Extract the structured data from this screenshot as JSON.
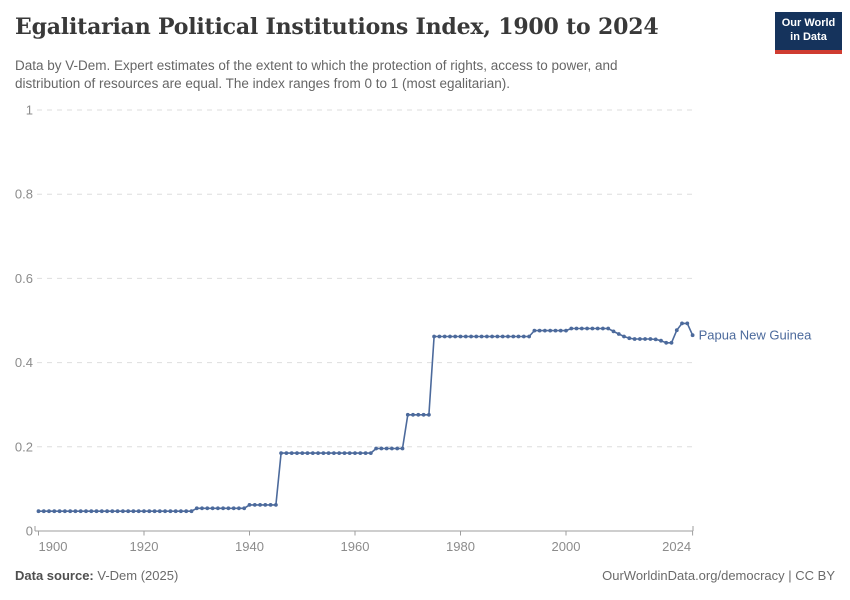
{
  "header": {
    "title": "Egalitarian Political Institutions Index, 1900 to 2024",
    "subtitle_lines": [
      "Data by V-Dem. Expert estimates of the extent to which the protection of rights, access to power, and",
      "distribution of resources are equal. The index ranges from 0 to 1 (most egalitarian)."
    ],
    "logo": {
      "line1": "Our World",
      "line2": "in Data",
      "bg_color": "#15335c",
      "accent_color": "#cf3c31"
    }
  },
  "chart_data": {
    "type": "line",
    "title": "Egalitarian Political Institutions Index, 1900 to 2024",
    "xlabel": "",
    "ylabel": "",
    "xlim": [
      1900,
      2024
    ],
    "ylim": [
      0,
      1
    ],
    "x_ticks": [
      1900,
      1920,
      1940,
      1960,
      1980,
      2000,
      2024
    ],
    "y_ticks": [
      0,
      0.2,
      0.4,
      0.6,
      0.8,
      1
    ],
    "grid": "horizontal-dashed",
    "legend_position": "end-of-line-label",
    "series": [
      {
        "name": "Papua New Guinea",
        "color": "#4C6A9C",
        "x_start": 1900,
        "x_step": 1,
        "values": [
          0.047,
          0.047,
          0.047,
          0.047,
          0.047,
          0.047,
          0.047,
          0.047,
          0.047,
          0.047,
          0.047,
          0.047,
          0.047,
          0.047,
          0.047,
          0.047,
          0.047,
          0.047,
          0.047,
          0.047,
          0.047,
          0.047,
          0.047,
          0.047,
          0.047,
          0.047,
          0.047,
          0.047,
          0.047,
          0.047,
          0.054,
          0.054,
          0.054,
          0.054,
          0.054,
          0.054,
          0.054,
          0.054,
          0.054,
          0.054,
          0.062,
          0.062,
          0.062,
          0.062,
          0.062,
          0.062,
          0.185,
          0.185,
          0.185,
          0.185,
          0.185,
          0.185,
          0.185,
          0.185,
          0.185,
          0.185,
          0.185,
          0.185,
          0.185,
          0.185,
          0.185,
          0.185,
          0.185,
          0.185,
          0.196,
          0.196,
          0.196,
          0.196,
          0.196,
          0.196,
          0.276,
          0.276,
          0.276,
          0.276,
          0.276,
          0.462,
          0.462,
          0.462,
          0.462,
          0.462,
          0.462,
          0.462,
          0.462,
          0.462,
          0.462,
          0.462,
          0.462,
          0.462,
          0.462,
          0.462,
          0.462,
          0.462,
          0.462,
          0.462,
          0.476,
          0.476,
          0.476,
          0.476,
          0.476,
          0.476,
          0.476,
          0.481,
          0.481,
          0.481,
          0.481,
          0.481,
          0.481,
          0.481,
          0.481,
          0.474,
          0.468,
          0.462,
          0.458,
          0.456,
          0.456,
          0.456,
          0.456,
          0.455,
          0.452,
          0.447,
          0.447,
          0.477,
          0.493,
          0.493,
          0.465
        ]
      }
    ]
  },
  "axis_style": {
    "label_color": "#8c8c8c",
    "grid_color": "#dedede",
    "axis_color": "#9e9e9e"
  },
  "footer": {
    "source_label": "Data source:",
    "source_value": " V-Dem (2025)",
    "credit": "OurWorldinData.org/democracy | CC BY"
  }
}
